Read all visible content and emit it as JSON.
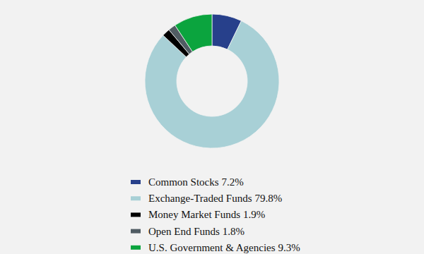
{
  "chart_data": {
    "type": "donut",
    "categories": [
      "Common Stocks",
      "Exchange-Traded Funds",
      "Money Market Funds",
      "Open End Funds",
      "U.S. Government & Agencies"
    ],
    "values": [
      7.2,
      79.8,
      1.9,
      1.8,
      9.3
    ],
    "value_labels": [
      "7.2%",
      "79.8%",
      "1.9%",
      "1.8%",
      "9.3%"
    ],
    "colors": [
      "#27408b",
      "#a8d0d6",
      "#000000",
      "#505c63",
      "#0ba43e"
    ],
    "legend": "bottom"
  }
}
